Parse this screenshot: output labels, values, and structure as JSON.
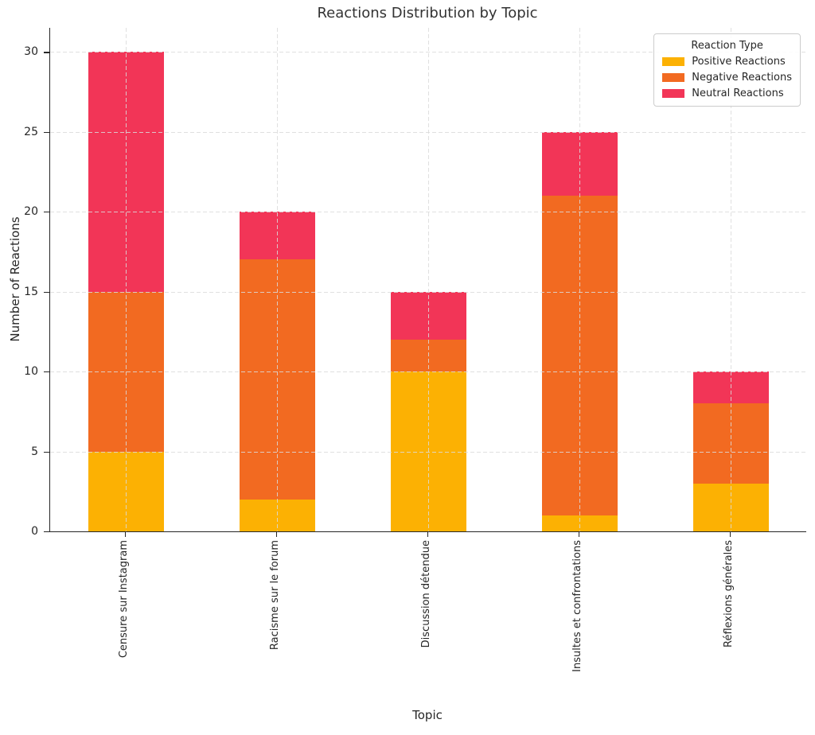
{
  "chart_data": {
    "type": "bar",
    "stacked": true,
    "title": "Reactions Distribution by Topic",
    "xlabel": "Topic",
    "ylabel": "Number of Reactions",
    "legend_title": "Reaction Type",
    "legend_position": "upper right",
    "categories": [
      "Censure sur Instagram",
      "Racisme sur le forum",
      "Discussion détendue",
      "Insultes et confrontations",
      "Réflexions générales"
    ],
    "series": [
      {
        "name": "Positive Reactions",
        "color": "#FCB103",
        "values": [
          5,
          2,
          10,
          1,
          3
        ]
      },
      {
        "name": "Negative Reactions",
        "color": "#F26A21",
        "values": [
          10,
          15,
          2,
          20,
          5
        ]
      },
      {
        "name": "Neutral Reactions",
        "color": "#F23557",
        "values": [
          15,
          3,
          3,
          4,
          2
        ]
      }
    ],
    "yticks": [
      0,
      5,
      10,
      15,
      20,
      25,
      30
    ],
    "ylim": [
      0,
      31.5
    ],
    "grid": "dashed gridlines on both axes, drawn over the bars"
  },
  "colors": {
    "background": "#FFFFFF",
    "axis": "#262626",
    "grid": "#DBDBDB",
    "legend_border": "#CCCCCC",
    "title_text": "#333333"
  }
}
